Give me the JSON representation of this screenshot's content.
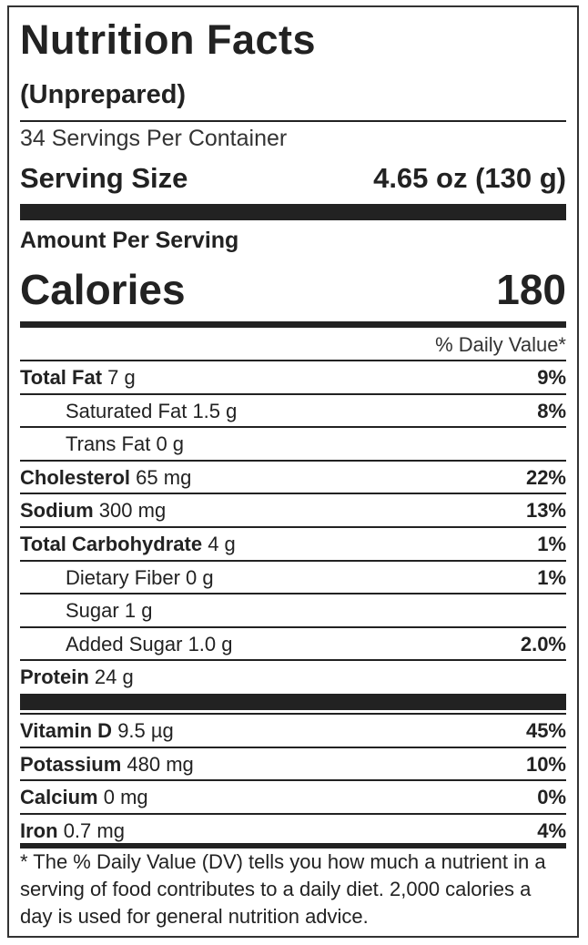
{
  "label": {
    "title": "Nutrition Facts",
    "subtitle": "(Unprepared)",
    "servings_per_container": "34 Servings Per Container",
    "serving_size_label": "Serving Size",
    "serving_size_value": "4.65 oz (130 g)",
    "amount_per_serving": "Amount Per Serving",
    "calories_label": "Calories",
    "calories_value": "180",
    "daily_value_header": "% Daily Value*",
    "nutrients": [
      {
        "name": "Total Fat",
        "amount": "7 g",
        "dv": "9%",
        "bold": true,
        "indent": false
      },
      {
        "name": "Saturated Fat",
        "amount": "1.5 g",
        "dv": "8%",
        "bold": false,
        "indent": true
      },
      {
        "name": "Trans Fat",
        "amount": "0 g",
        "dv": "",
        "bold": false,
        "indent": true
      },
      {
        "name": "Cholesterol",
        "amount": "65 mg",
        "dv": "22%",
        "bold": true,
        "indent": false
      },
      {
        "name": "Sodium",
        "amount": "300 mg",
        "dv": "13%",
        "bold": true,
        "indent": false
      },
      {
        "name": "Total Carbohydrate",
        "amount": "4 g",
        "dv": "1%",
        "bold": true,
        "indent": false
      },
      {
        "name": "Dietary Fiber",
        "amount": "0 g",
        "dv": "1%",
        "bold": false,
        "indent": true
      },
      {
        "name": "Sugar",
        "amount": "1 g",
        "dv": "",
        "bold": false,
        "indent": true
      },
      {
        "name": "Added Sugar",
        "amount": "1.0 g",
        "dv": "2.0%",
        "bold": false,
        "indent": true
      },
      {
        "name": "Protein",
        "amount": "24 g",
        "dv": "",
        "bold": true,
        "indent": false
      }
    ],
    "vitamins": [
      {
        "name": "Vitamin D",
        "amount": "9.5 µg",
        "dv": "45%"
      },
      {
        "name": "Potassium",
        "amount": "480 mg",
        "dv": "10%"
      },
      {
        "name": "Calcium",
        "amount": "0 mg",
        "dv": "0%"
      },
      {
        "name": "Iron",
        "amount": "0.7 mg",
        "dv": "4%"
      }
    ],
    "footnote": "* The % Daily Value (DV) tells you how much a nutrient in a serving of food contributes to a daily diet. 2,000 calories a day is used for general nutrition advice."
  }
}
